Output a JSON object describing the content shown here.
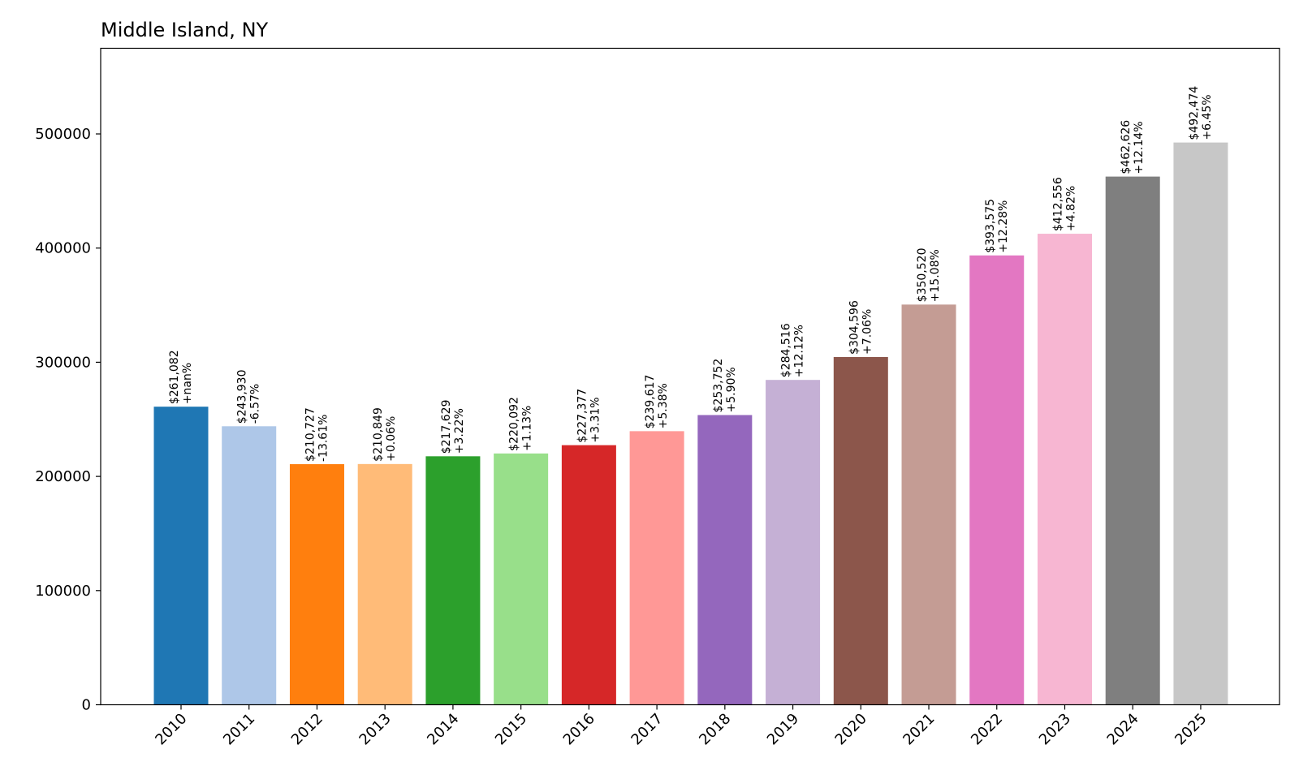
{
  "chart_data": {
    "type": "bar",
    "title": "Middle Island, NY",
    "xlabel": "",
    "ylabel": "",
    "ylim": [
      0,
      575000
    ],
    "yticks": [
      0,
      100000,
      200000,
      300000,
      400000,
      500000
    ],
    "ytick_labels": [
      "0",
      "100000",
      "200000",
      "300000",
      "400000",
      "500000"
    ],
    "grid": false,
    "legend": "none",
    "categories": [
      "2010",
      "2011",
      "2012",
      "2013",
      "2014",
      "2015",
      "2016",
      "2017",
      "2018",
      "2019",
      "2020",
      "2021",
      "2022",
      "2023",
      "2024",
      "2025"
    ],
    "values": [
      261082,
      243930,
      210727,
      210849,
      217629,
      220092,
      227377,
      239617,
      253752,
      284516,
      304596,
      350520,
      393575,
      412556,
      462626,
      492474
    ],
    "value_labels": [
      "$261,082",
      "$243,930",
      "$210,727",
      "$210,849",
      "$217,629",
      "$220,092",
      "$227,377",
      "$239,617",
      "$253,752",
      "$284,516",
      "$304,596",
      "$350,520",
      "$393,575",
      "$412,556",
      "$462,626",
      "$492,474"
    ],
    "change_labels": [
      "+nan%",
      "-6.57%",
      "-13.61%",
      "+0.06%",
      "+3.22%",
      "+1.13%",
      "+3.31%",
      "+5.38%",
      "+5.90%",
      "+12.12%",
      "+7.06%",
      "+15.08%",
      "+12.28%",
      "+4.82%",
      "+12.14%",
      "+6.45%"
    ],
    "colors": [
      "#1f77b4",
      "#aec7e8",
      "#ff7f0e",
      "#ffbb78",
      "#2ca02c",
      "#98df8a",
      "#d62728",
      "#ff9896",
      "#9467bd",
      "#c5b0d5",
      "#8c564b",
      "#c49c94",
      "#e377c2",
      "#f7b6d2",
      "#7f7f7f",
      "#c7c7c7"
    ]
  }
}
